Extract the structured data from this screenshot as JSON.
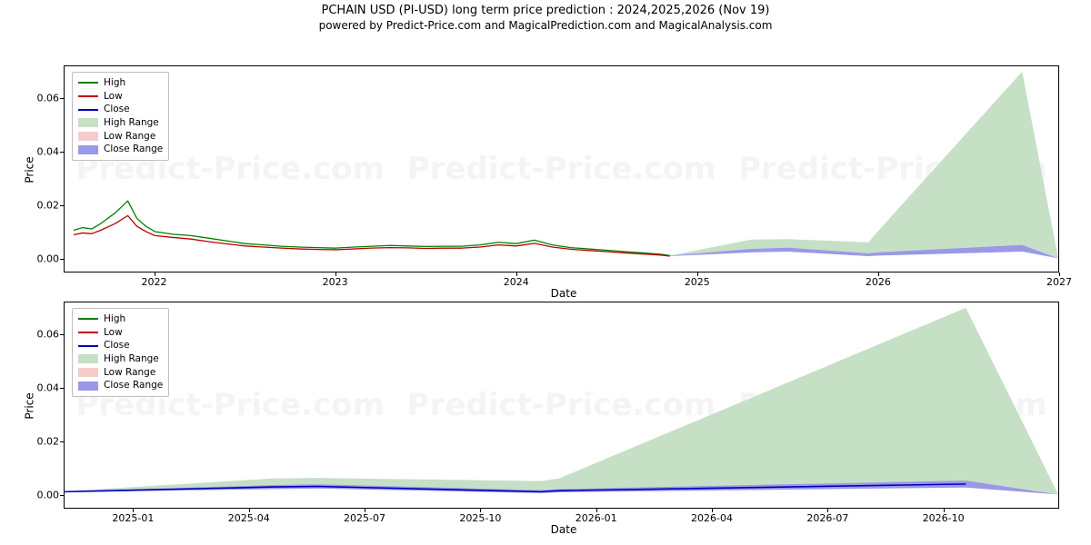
{
  "titles": {
    "main": "PCHAIN USD (PI-USD) long term price prediction : 2024,2025,2026 (Nov 19)",
    "sub": "powered by Predict-Price.com and MagicalPrediction.com and MagicalAnalysis.com"
  },
  "watermark_text": "Predict-Price.com",
  "legend": {
    "items": [
      {
        "label": "High",
        "type": "line",
        "color": "#008000"
      },
      {
        "label": "Low",
        "type": "line",
        "color": "#c00000"
      },
      {
        "label": "Close",
        "type": "line",
        "color": "#0000c0"
      },
      {
        "label": "High Range",
        "type": "patch",
        "color": "#c6e0c6"
      },
      {
        "label": "Low Range",
        "type": "patch",
        "color": "#f5cccc"
      },
      {
        "label": "Close Range",
        "type": "patch",
        "color": "#9999e6"
      }
    ]
  },
  "axes": {
    "ylabel": "Price",
    "xlabel": "Date"
  },
  "colors": {
    "high_line": "#008000",
    "low_line": "#c00000",
    "close_line": "#0000c0",
    "high_range_fill": "#c6e0c6",
    "close_range_fill": "#9999e6",
    "axis": "#000000",
    "background": "#ffffff",
    "legend_border": "#bfbfbf",
    "watermark": "rgba(0,0,0,0.045)"
  },
  "chart1": {
    "type": "line+area",
    "xlim": [
      2021.5,
      2027.0
    ],
    "ylim": [
      -0.005,
      0.072
    ],
    "yticks": [
      0.0,
      0.02,
      0.04,
      0.06
    ],
    "xticks": [
      2022,
      2023,
      2024,
      2025,
      2026,
      2027
    ],
    "xtick_labels": [
      "2022",
      "2023",
      "2024",
      "2025",
      "2026",
      "2027"
    ],
    "high_range": {
      "x": [
        2024.85,
        2025.3,
        2025.5,
        2025.95,
        2026.0,
        2026.8,
        2027.0
      ],
      "upper": [
        0.001,
        0.007,
        0.0072,
        0.006,
        0.01,
        0.07,
        0.0
      ],
      "lower": [
        0.001,
        0.0035,
        0.004,
        0.001,
        0.002,
        0.005,
        0.0
      ]
    },
    "close_range": {
      "x": [
        2024.85,
        2025.3,
        2025.5,
        2025.95,
        2026.0,
        2026.8,
        2027.0
      ],
      "upper": [
        0.001,
        0.0035,
        0.004,
        0.0018,
        0.0022,
        0.005,
        0.0
      ],
      "lower": [
        0.0008,
        0.0022,
        0.0025,
        0.0008,
        0.001,
        0.0025,
        0.0
      ]
    },
    "hist": {
      "x": [
        2021.55,
        2021.6,
        2021.65,
        2021.7,
        2021.78,
        2021.85,
        2021.9,
        2021.95,
        2022.0,
        2022.1,
        2022.2,
        2022.3,
        2022.4,
        2022.5,
        2022.6,
        2022.7,
        2022.8,
        2022.9,
        2023.0,
        2023.1,
        2023.2,
        2023.3,
        2023.4,
        2023.5,
        2023.6,
        2023.7,
        2023.8,
        2023.9,
        2024.0,
        2024.1,
        2024.2,
        2024.3,
        2024.4,
        2024.5,
        2024.6,
        2024.7,
        2024.8,
        2024.85
      ],
      "high": [
        0.0105,
        0.0115,
        0.011,
        0.013,
        0.017,
        0.0215,
        0.015,
        0.012,
        0.01,
        0.009,
        0.0085,
        0.0075,
        0.0065,
        0.0055,
        0.005,
        0.0045,
        0.0042,
        0.004,
        0.0038,
        0.0042,
        0.0045,
        0.0048,
        0.0046,
        0.0044,
        0.0045,
        0.0045,
        0.005,
        0.006,
        0.0055,
        0.0068,
        0.005,
        0.004,
        0.0035,
        0.003,
        0.0025,
        0.002,
        0.0015,
        0.001
      ],
      "low": [
        0.0088,
        0.0095,
        0.0092,
        0.0105,
        0.013,
        0.016,
        0.012,
        0.01,
        0.0085,
        0.0078,
        0.0072,
        0.0062,
        0.0054,
        0.0046,
        0.0042,
        0.0038,
        0.0035,
        0.0033,
        0.0032,
        0.0035,
        0.0038,
        0.004,
        0.0039,
        0.0037,
        0.0038,
        0.0038,
        0.0042,
        0.005,
        0.0046,
        0.0056,
        0.0042,
        0.0034,
        0.0029,
        0.0025,
        0.002,
        0.0016,
        0.0012,
        0.0008
      ]
    }
  },
  "chart2": {
    "type": "line+area",
    "xlim": [
      2024.85,
      2027.0
    ],
    "ylim": [
      -0.005,
      0.072
    ],
    "yticks": [
      0.0,
      0.02,
      0.04,
      0.06
    ],
    "xticks": [
      2025.0,
      2025.25,
      2025.5,
      2025.75,
      2026.0,
      2026.25,
      2026.5,
      2026.75
    ],
    "xtick_labels": [
      "2025-01",
      "2025-04",
      "2025-07",
      "2025-10",
      "2026-01",
      "2026-04",
      "2026-07",
      "2026-10"
    ],
    "high_range": {
      "x": [
        2024.85,
        2025.3,
        2025.4,
        2025.88,
        2025.92,
        2026.8,
        2027.0
      ],
      "upper": [
        0.0012,
        0.006,
        0.0062,
        0.005,
        0.006,
        0.07,
        0.0
      ],
      "lower": [
        0.0012,
        0.0035,
        0.0038,
        0.0008,
        0.0015,
        0.005,
        0.0
      ]
    },
    "close_range": {
      "x": [
        2024.85,
        2025.3,
        2025.4,
        2025.88,
        2025.92,
        2026.8,
        2027.0
      ],
      "upper": [
        0.0012,
        0.0035,
        0.0038,
        0.0016,
        0.002,
        0.0052,
        0.0
      ],
      "lower": [
        0.0008,
        0.002,
        0.0022,
        0.0005,
        0.0008,
        0.0026,
        0.0
      ]
    },
    "close_line": {
      "x": [
        2024.85,
        2025.3,
        2025.4,
        2025.88,
        2025.92,
        2026.8
      ],
      "y": [
        0.001,
        0.0028,
        0.003,
        0.001,
        0.0014,
        0.0039
      ]
    }
  },
  "fontsize": {
    "title": 13,
    "subtitle": 12,
    "axis_label": 12,
    "tick": 11,
    "legend": 10.5
  }
}
